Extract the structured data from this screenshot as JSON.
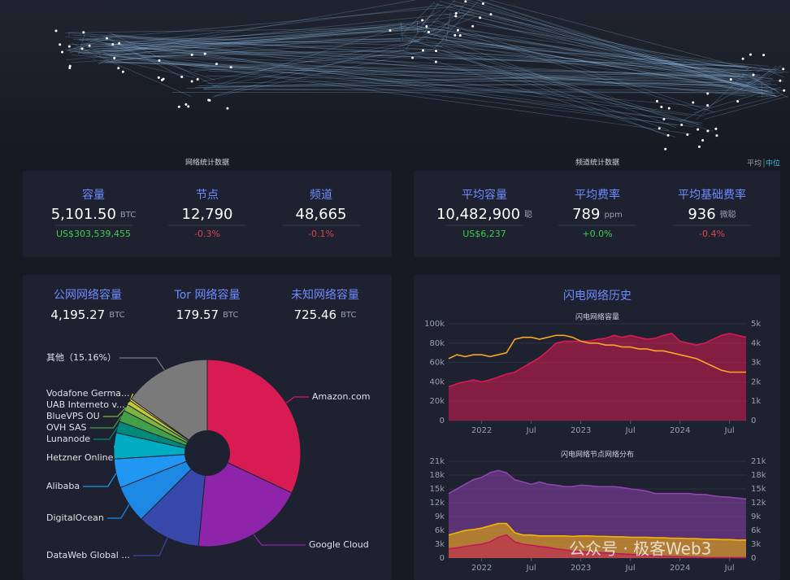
{
  "network_stats": {
    "title": "网络统计数据",
    "items": [
      {
        "label": "容量",
        "value": "5,101.50",
        "unit": "BTC",
        "sub": "US$303,539,455",
        "sub_color": "#3ecf4c"
      },
      {
        "label": "节点",
        "value": "12,790",
        "sub": "-0.3%",
        "sub_color": "#e0434f"
      },
      {
        "label": "频道",
        "value": "48,665",
        "sub": "-0.1%",
        "sub_color": "#e0434f"
      }
    ]
  },
  "channel_stats": {
    "title": "频道统计数据",
    "toggle": [
      "平均",
      "中位"
    ],
    "items": [
      {
        "label": "平均容量",
        "value": "10,482,900",
        "unit": "聪",
        "sub": "US$6,237",
        "sub_color": "#3ecf4c"
      },
      {
        "label": "平均费率",
        "value": "789",
        "unit": "ppm",
        "sub": "+0.0%",
        "sub_color": "#3ecf4c"
      },
      {
        "label": "平均基础费率",
        "value": "936",
        "unit": "微聪",
        "sub": "-0.4%",
        "sub_color": "#e0434f"
      }
    ]
  },
  "network_capacity": {
    "items": [
      {
        "label": "公网网络容量",
        "value": "4,195.27",
        "unit": "BTC"
      },
      {
        "label": "Tor 网络容量",
        "value": "179.57",
        "unit": "BTC"
      },
      {
        "label": "未知网络容量",
        "value": "725.46",
        "unit": "BTC"
      }
    ]
  },
  "history_title": "闪电网络历史",
  "watermark": "公众号 · 极客Web3",
  "chart_data": [
    {
      "type": "pie",
      "categories": [
        "Amazon.com",
        "Google Cloud",
        "DataWeb Global ...",
        "DigitalOcean",
        "Alibaba",
        "Hetzner Online",
        "Lunanode",
        "OVH SAS",
        "BlueVPS OU",
        "UAB Interneto v...",
        "Vodafone Germa...",
        "其他（15.16%）"
      ],
      "values": [
        32,
        19.5,
        11,
        6.5,
        5,
        4.5,
        2,
        2,
        1.2,
        0.8,
        0.34,
        15.16
      ],
      "colors": [
        "#d81b52",
        "#8e24aa",
        "#3949ab",
        "#1e88e5",
        "#2196f3",
        "#00acc1",
        "#00897b",
        "#43a047",
        "#7cb342",
        "#c0ca33",
        "#fdd835",
        "#7a7a7a"
      ]
    },
    {
      "type": "line",
      "title": "闪电网络容量",
      "x": [
        "2021-09",
        "2021-10",
        "2021-11",
        "2021-12",
        "2022-01",
        "2022-02",
        "2022-03",
        "2022-04",
        "2022-05",
        "2022-06",
        "2022-07",
        "2022-08",
        "2022-09",
        "2022-10",
        "2022-11",
        "2022-12",
        "2023-01",
        "2023-02",
        "2023-03",
        "2023-04",
        "2023-05",
        "2023-06",
        "2023-07",
        "2023-08",
        "2023-09",
        "2023-10",
        "2023-11",
        "2023-12",
        "2024-01",
        "2024-02",
        "2024-03",
        "2024-04",
        "2024-05",
        "2024-06",
        "2024-07",
        "2024-08",
        "2024-09"
      ],
      "xlim": [
        "2021-09",
        "2024-09"
      ],
      "xticks": [
        {
          "value": "2022-01",
          "label": "2022"
        },
        {
          "value": "2022-07",
          "label": "Jul"
        },
        {
          "value": "2023-01",
          "label": "2023"
        },
        {
          "value": "2023-07",
          "label": "Jul"
        },
        {
          "value": "2024-01",
          "label": "2024"
        },
        {
          "value": "2024-07",
          "label": "Jul"
        }
      ],
      "ylim": [
        0,
        100000
      ],
      "yticks": [
        0,
        {
          "value": 20000,
          "label": "20k"
        },
        {
          "value": 40000,
          "label": "40k"
        },
        {
          "value": 60000,
          "label": "60k"
        },
        {
          "value": 80000,
          "label": "80k"
        },
        {
          "value": 100000,
          "label": "100k"
        }
      ],
      "y2lim": [
        0,
        5000
      ],
      "y2ticks": [
        0,
        {
          "value": 1000,
          "label": "1k"
        },
        {
          "value": 2000,
          "label": "2k"
        },
        {
          "value": 3000,
          "label": "3k"
        },
        {
          "value": 4000,
          "label": "4k"
        },
        {
          "value": 5000,
          "label": "5k"
        }
      ],
      "grid": true,
      "series": [
        {
          "color": "#d81b52",
          "area": true,
          "values": [
            35000,
            38000,
            40000,
            42000,
            40000,
            42000,
            45000,
            48000,
            50000,
            55000,
            60000,
            65000,
            72000,
            80000,
            82000,
            82000,
            82000,
            82000,
            84000,
            85000,
            88000,
            86000,
            88000,
            86000,
            84000,
            85000,
            88000,
            90000,
            82000,
            80000,
            78000,
            80000,
            84000,
            88000,
            90000,
            88000,
            86000
          ]
        },
        {
          "color": "#f5a623",
          "area": false,
          "axis": "y2",
          "values": [
            3200,
            3400,
            3300,
            3400,
            3400,
            3300,
            3400,
            3500,
            4200,
            4300,
            4300,
            4200,
            4300,
            4400,
            4400,
            4300,
            4100,
            4000,
            4000,
            3900,
            3900,
            3800,
            3800,
            3700,
            3700,
            3600,
            3600,
            3500,
            3400,
            3300,
            3200,
            3000,
            2800,
            2600,
            2500,
            2500,
            2500
          ]
        }
      ]
    },
    {
      "type": "line",
      "title": "闪电网络节点网络分布",
      "x": [
        "2021-09",
        "2021-10",
        "2021-11",
        "2021-12",
        "2022-01",
        "2022-02",
        "2022-03",
        "2022-04",
        "2022-05",
        "2022-06",
        "2022-07",
        "2022-08",
        "2022-09",
        "2022-10",
        "2022-11",
        "2022-12",
        "2023-01",
        "2023-02",
        "2023-03",
        "2023-04",
        "2023-05",
        "2023-06",
        "2023-07",
        "2023-08",
        "2023-09",
        "2023-10",
        "2023-11",
        "2023-12",
        "2024-01",
        "2024-02",
        "2024-03",
        "2024-04",
        "2024-05",
        "2024-06",
        "2024-07",
        "2024-08",
        "2024-09"
      ],
      "xlim": [
        "2021-09",
        "2024-09"
      ],
      "xticks": [
        {
          "value": "2022-01",
          "label": "2022"
        },
        {
          "value": "2022-07",
          "label": "Jul"
        },
        {
          "value": "2023-01",
          "label": "2023"
        },
        {
          "value": "2023-07",
          "label": "Jul"
        },
        {
          "value": "2024-01",
          "label": "2024"
        },
        {
          "value": "2024-07",
          "label": "Jul"
        }
      ],
      "ylim": [
        0,
        21000
      ],
      "yticks": [
        0,
        {
          "value": 3000,
          "label": "3k"
        },
        {
          "value": 6000,
          "label": "6k"
        },
        {
          "value": 9000,
          "label": "9k"
        },
        {
          "value": 12000,
          "label": "12k"
        },
        {
          "value": 15000,
          "label": "15k"
        },
        {
          "value": 18000,
          "label": "18k"
        },
        {
          "value": 21000,
          "label": "21k"
        }
      ],
      "y2lim": [
        0,
        21000
      ],
      "y2ticks": [
        0,
        {
          "value": 3000,
          "label": "3k"
        },
        {
          "value": 6000,
          "label": "6k"
        },
        {
          "value": 9000,
          "label": "9k"
        },
        {
          "value": 12000,
          "label": "12k"
        },
        {
          "value": 15000,
          "label": "15k"
        },
        {
          "value": 18000,
          "label": "18k"
        },
        {
          "value": 21000,
          "label": "21k"
        }
      ],
      "grid": true,
      "series": [
        {
          "color": "#8e44ad",
          "area": true,
          "values": [
            14000,
            15000,
            16000,
            17000,
            17500,
            18500,
            19000,
            18500,
            17000,
            16500,
            16000,
            16500,
            16000,
            15800,
            15500,
            15500,
            15800,
            15700,
            15500,
            15500,
            15500,
            15300,
            15000,
            14800,
            14500,
            14000,
            14000,
            14000,
            14000,
            14000,
            13800,
            13800,
            13500,
            13300,
            13200,
            13000,
            12800
          ]
        },
        {
          "color": "#f5b800",
          "area": true,
          "values": [
            5000,
            5500,
            6000,
            6200,
            6500,
            7000,
            7500,
            7500,
            5500,
            5000,
            5000,
            4800,
            4800,
            4800,
            4800,
            4700,
            4800,
            4800,
            4700,
            4700,
            4600,
            4600,
            4500,
            4500,
            4500,
            4400,
            4400,
            4300,
            4300,
            4200,
            4200,
            4100,
            4100,
            4000,
            4000,
            3900,
            3900
          ]
        },
        {
          "color": "#c2185b",
          "area": true,
          "values": [
            2000,
            2200,
            2500,
            2800,
            3000,
            3500,
            4500,
            5000,
            3500,
            3000,
            2800,
            2500,
            2300,
            2000,
            1800,
            1500,
            1400,
            1300,
            1200,
            1100,
            1000,
            900,
            800,
            700,
            600,
            500,
            400,
            300,
            300,
            200,
            200,
            100,
            100,
            100,
            100,
            100,
            100
          ]
        }
      ]
    }
  ]
}
